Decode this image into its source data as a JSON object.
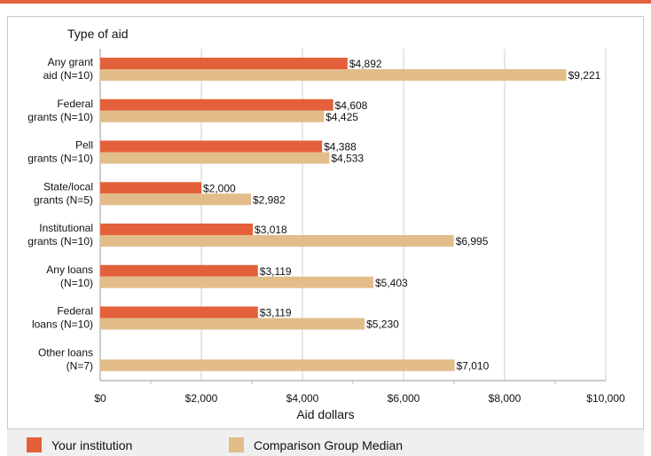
{
  "chart_data": {
    "type": "bar",
    "orientation": "horizontal",
    "title": "Type of aid",
    "xlabel": "Aid dollars",
    "xlim": [
      0,
      10000
    ],
    "xticks": [
      0,
      2000,
      4000,
      6000,
      8000,
      10000
    ],
    "xtick_labels": [
      "$0",
      "$2,000",
      "$4,000",
      "$6,000",
      "$8,000",
      "$10,000"
    ],
    "grid": true,
    "legend_position": "bottom",
    "categories": [
      [
        "Any grant",
        "aid (N=10)"
      ],
      [
        "Federal",
        "grants (N=10)"
      ],
      [
        "Pell",
        "grants (N=10)"
      ],
      [
        "State/local",
        "grants (N=5)"
      ],
      [
        "Institutional",
        "grants (N=10)"
      ],
      [
        "Any loans",
        "(N=10)"
      ],
      [
        "Federal",
        "loans (N=10)"
      ],
      [
        "Other loans",
        "(N=7)"
      ]
    ],
    "series": [
      {
        "name": "Your institution",
        "color": "#e4603a",
        "values": [
          4892,
          4608,
          4388,
          2000,
          3018,
          3119,
          3119,
          null
        ],
        "labels": [
          "$4,892",
          "$4,608",
          "$4,388",
          "$2,000",
          "$3,018",
          "$3,119",
          "$3,119",
          null
        ]
      },
      {
        "name": "Comparison Group Median",
        "color": "#e2bd8a",
        "values": [
          9221,
          4425,
          4533,
          2982,
          6995,
          5403,
          5230,
          7010
        ],
        "labels": [
          "$9,221",
          "$4,425",
          "$4,533",
          "$2,982",
          "$6,995",
          "$5,403",
          "$5,230",
          "$7,010"
        ]
      }
    ]
  }
}
